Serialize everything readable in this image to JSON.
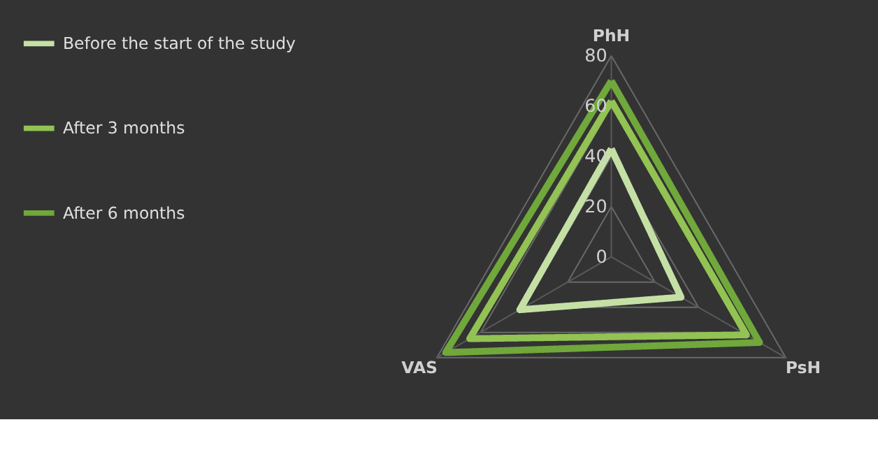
{
  "chart_data": {
    "type": "radar",
    "categories": [
      "PhH",
      "PsH",
      "VAS"
    ],
    "series": [
      {
        "name": "Before the start of the study",
        "color": "#c5e0a5",
        "values": [
          43,
          32,
          42
        ]
      },
      {
        "name": "After 3 months",
        "color": "#92c353",
        "values": [
          62,
          62,
          65
        ]
      },
      {
        "name": "After 6 months",
        "color": "#70a83b",
        "values": [
          70,
          68,
          76
        ]
      }
    ],
    "ylim": [
      0,
      80
    ],
    "yticks": [
      0,
      20,
      40,
      60,
      80
    ],
    "grid": true,
    "legend": "left",
    "marker": "none",
    "line_style": "solid"
  }
}
